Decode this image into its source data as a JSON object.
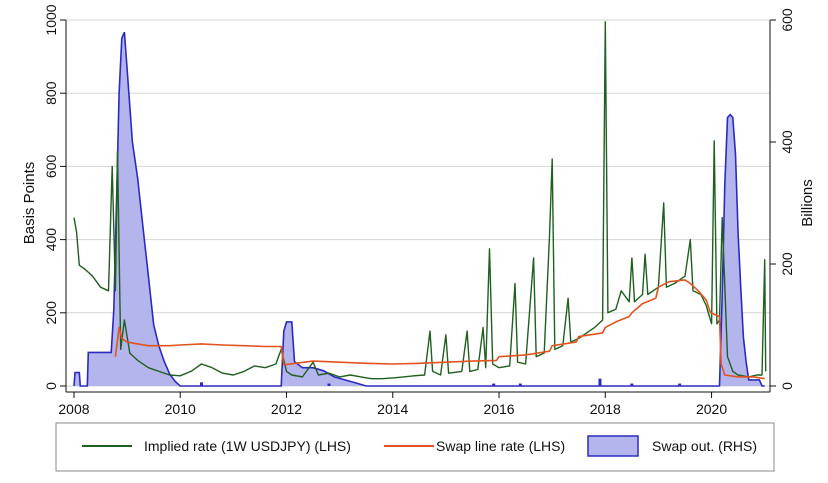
{
  "chart_data": {
    "type": "line",
    "x_ticks": [
      "2008",
      "2010",
      "2012",
      "2014",
      "2016",
      "2018",
      "2020"
    ],
    "xlim": [
      2007.85,
      2021.1
    ],
    "y_left": {
      "label": "Basis Points",
      "ticks": [
        "0",
        "200",
        "400",
        "600",
        "800",
        "1000"
      ],
      "lim": [
        0,
        1000
      ]
    },
    "y_right": {
      "label": "Billions",
      "ticks": [
        "0",
        "200",
        "400",
        "600"
      ],
      "lim": [
        0,
        600
      ]
    },
    "grid": true,
    "legend_position": "bottom",
    "series": [
      {
        "name": "Implied rate (1W USDJPY) (LHS)",
        "axis": "left",
        "color": "#1f5f1f",
        "points": [
          [
            2008.0,
            460
          ],
          [
            2008.05,
            420
          ],
          [
            2008.1,
            330
          ],
          [
            2008.2,
            320
          ],
          [
            2008.35,
            300
          ],
          [
            2008.5,
            270
          ],
          [
            2008.65,
            260
          ],
          [
            2008.72,
            600
          ],
          [
            2008.78,
            260
          ],
          [
            2008.82,
            640
          ],
          [
            2008.88,
            100
          ],
          [
            2008.95,
            180
          ],
          [
            2009.05,
            90
          ],
          [
            2009.2,
            70
          ],
          [
            2009.4,
            50
          ],
          [
            2009.6,
            40
          ],
          [
            2009.8,
            30
          ],
          [
            2010.0,
            28
          ],
          [
            2010.2,
            40
          ],
          [
            2010.4,
            60
          ],
          [
            2010.6,
            50
          ],
          [
            2010.8,
            35
          ],
          [
            2011.0,
            30
          ],
          [
            2011.2,
            40
          ],
          [
            2011.4,
            55
          ],
          [
            2011.6,
            50
          ],
          [
            2011.8,
            60
          ],
          [
            2011.9,
            100
          ],
          [
            2012.0,
            40
          ],
          [
            2012.1,
            30
          ],
          [
            2012.3,
            25
          ],
          [
            2012.5,
            65
          ],
          [
            2012.6,
            30
          ],
          [
            2012.8,
            35
          ],
          [
            2013.0,
            25
          ],
          [
            2013.2,
            30
          ],
          [
            2013.4,
            25
          ],
          [
            2013.6,
            20
          ],
          [
            2013.8,
            20
          ],
          [
            2014.0,
            22
          ],
          [
            2014.2,
            25
          ],
          [
            2014.4,
            28
          ],
          [
            2014.6,
            30
          ],
          [
            2014.7,
            150
          ],
          [
            2014.75,
            40
          ],
          [
            2014.9,
            30
          ],
          [
            2015.0,
            140
          ],
          [
            2015.05,
            35
          ],
          [
            2015.3,
            40
          ],
          [
            2015.4,
            150
          ],
          [
            2015.45,
            40
          ],
          [
            2015.6,
            45
          ],
          [
            2015.7,
            160
          ],
          [
            2015.75,
            50
          ],
          [
            2015.82,
            375
          ],
          [
            2015.88,
            60
          ],
          [
            2016.0,
            50
          ],
          [
            2016.2,
            55
          ],
          [
            2016.3,
            280
          ],
          [
            2016.35,
            65
          ],
          [
            2016.5,
            60
          ],
          [
            2016.65,
            350
          ],
          [
            2016.7,
            80
          ],
          [
            2016.85,
            90
          ],
          [
            2016.95,
            410
          ],
          [
            2017.0,
            620
          ],
          [
            2017.05,
            100
          ],
          [
            2017.2,
            110
          ],
          [
            2017.3,
            240
          ],
          [
            2017.35,
            120
          ],
          [
            2017.5,
            130
          ],
          [
            2017.7,
            150
          ],
          [
            2017.8,
            160
          ],
          [
            2017.95,
            180
          ],
          [
            2018.0,
            995
          ],
          [
            2018.05,
            200
          ],
          [
            2018.2,
            210
          ],
          [
            2018.3,
            260
          ],
          [
            2018.45,
            230
          ],
          [
            2018.5,
            350
          ],
          [
            2018.55,
            230
          ],
          [
            2018.7,
            250
          ],
          [
            2018.75,
            360
          ],
          [
            2018.8,
            250
          ],
          [
            2019.0,
            270
          ],
          [
            2019.1,
            500
          ],
          [
            2019.15,
            270
          ],
          [
            2019.3,
            280
          ],
          [
            2019.5,
            300
          ],
          [
            2019.6,
            400
          ],
          [
            2019.65,
            260
          ],
          [
            2019.8,
            250
          ],
          [
            2019.9,
            220
          ],
          [
            2020.0,
            170
          ],
          [
            2020.05,
            670
          ],
          [
            2020.1,
            170
          ],
          [
            2020.15,
            180
          ],
          [
            2020.2,
            460
          ],
          [
            2020.3,
            80
          ],
          [
            2020.4,
            40
          ],
          [
            2020.5,
            30
          ],
          [
            2020.7,
            25
          ],
          [
            2020.85,
            30
          ],
          [
            2020.95,
            30
          ],
          [
            2021.0,
            345
          ],
          [
            2021.02,
            40
          ]
        ]
      },
      {
        "name": "Swap line rate (LHS)",
        "axis": "left",
        "color": "#e2531f",
        "points": [
          [
            2008.78,
            80
          ],
          [
            2008.85,
            160
          ],
          [
            2008.9,
            130
          ],
          [
            2009.0,
            120
          ],
          [
            2009.2,
            115
          ],
          [
            2009.4,
            110
          ],
          [
            2009.8,
            110
          ],
          [
            2010.0,
            112
          ],
          [
            2010.4,
            115
          ],
          [
            2010.8,
            112
          ],
          [
            2011.2,
            110
          ],
          [
            2011.6,
            108
          ],
          [
            2011.9,
            108
          ],
          [
            2011.95,
            58
          ],
          [
            2012.5,
            68
          ],
          [
            2013.0,
            65
          ],
          [
            2013.5,
            62
          ],
          [
            2014.0,
            60
          ],
          [
            2014.5,
            62
          ],
          [
            2015.0,
            65
          ],
          [
            2015.5,
            68
          ],
          [
            2015.95,
            70
          ],
          [
            2016.0,
            80
          ],
          [
            2016.5,
            85
          ],
          [
            2016.95,
            95
          ],
          [
            2017.0,
            110
          ],
          [
            2017.45,
            120
          ],
          [
            2017.5,
            135
          ],
          [
            2017.95,
            145
          ],
          [
            2018.0,
            160
          ],
          [
            2018.2,
            175
          ],
          [
            2018.45,
            190
          ],
          [
            2018.5,
            200
          ],
          [
            2018.7,
            225
          ],
          [
            2018.95,
            240
          ],
          [
            2019.0,
            270
          ],
          [
            2019.2,
            285
          ],
          [
            2019.5,
            290
          ],
          [
            2019.6,
            280
          ],
          [
            2019.75,
            260
          ],
          [
            2019.9,
            235
          ],
          [
            2019.98,
            200
          ],
          [
            2020.15,
            190
          ],
          [
            2020.18,
            60
          ],
          [
            2020.25,
            30
          ],
          [
            2020.5,
            25
          ],
          [
            2020.8,
            25
          ],
          [
            2021.0,
            20
          ]
        ]
      },
      {
        "name": "Swap out. (RHS)",
        "axis": "right",
        "color": "#2b2bbf",
        "fill": "#b3b5ec",
        "points": [
          [
            2008.0,
            0
          ],
          [
            2008.02,
            22
          ],
          [
            2008.1,
            22
          ],
          [
            2008.12,
            0
          ],
          [
            2008.25,
            0
          ],
          [
            2008.27,
            55
          ],
          [
            2008.7,
            55
          ],
          [
            2008.75,
            125
          ],
          [
            2008.8,
            300
          ],
          [
            2008.85,
            480
          ],
          [
            2008.9,
            570
          ],
          [
            2008.95,
            580
          ],
          [
            2009.0,
            520
          ],
          [
            2009.1,
            400
          ],
          [
            2009.2,
            340
          ],
          [
            2009.3,
            260
          ],
          [
            2009.4,
            180
          ],
          [
            2009.5,
            100
          ],
          [
            2009.6,
            65
          ],
          [
            2009.7,
            40
          ],
          [
            2009.8,
            20
          ],
          [
            2009.9,
            8
          ],
          [
            2010.0,
            0
          ],
          [
            2011.9,
            0
          ],
          [
            2011.95,
            90
          ],
          [
            2012.0,
            105
          ],
          [
            2012.1,
            105
          ],
          [
            2012.15,
            40
          ],
          [
            2012.3,
            30
          ],
          [
            2012.5,
            30
          ],
          [
            2012.7,
            25
          ],
          [
            2012.9,
            15
          ],
          [
            2013.1,
            10
          ],
          [
            2013.3,
            5
          ],
          [
            2013.5,
            0
          ],
          [
            2020.15,
            0
          ],
          [
            2020.2,
            150
          ],
          [
            2020.25,
            330
          ],
          [
            2020.3,
            440
          ],
          [
            2020.35,
            445
          ],
          [
            2020.4,
            440
          ],
          [
            2020.45,
            380
          ],
          [
            2020.5,
            250
          ],
          [
            2020.55,
            160
          ],
          [
            2020.6,
            80
          ],
          [
            2020.65,
            40
          ],
          [
            2020.7,
            10
          ],
          [
            2020.72,
            10
          ],
          [
            2020.9,
            10
          ],
          [
            2020.95,
            0
          ],
          [
            2021.0,
            0
          ]
        ],
        "spikes": [
          [
            2010.4,
            6
          ],
          [
            2012.8,
            4
          ],
          [
            2015.9,
            4
          ],
          [
            2016.4,
            4
          ],
          [
            2017.9,
            12
          ],
          [
            2018.5,
            4
          ],
          [
            2019.4,
            4
          ]
        ]
      }
    ]
  }
}
